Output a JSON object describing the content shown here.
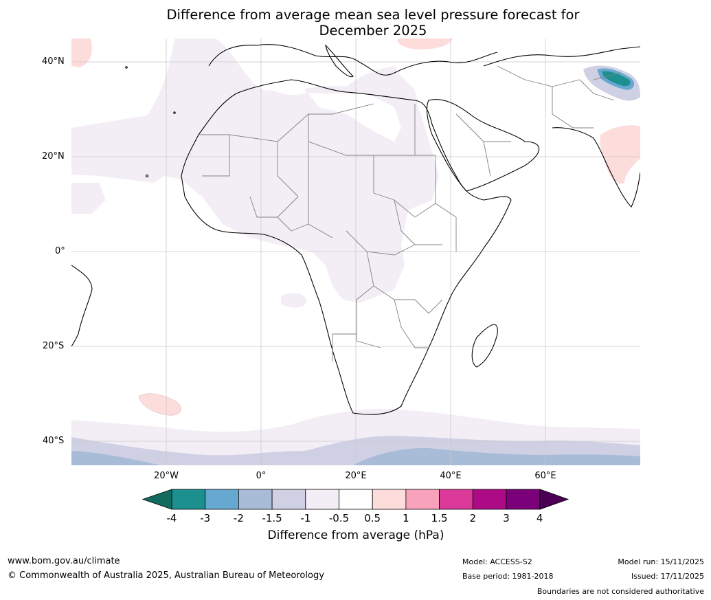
{
  "header": {
    "title_line1": "Difference from average mean sea level pressure forecast for",
    "title_line2": "December 2025"
  },
  "map": {
    "lat_labels": [
      "40°N",
      "20°N",
      "0°",
      "20°S",
      "40°S"
    ],
    "lon_labels": [
      "20°W",
      "0°",
      "20°E",
      "40°E",
      "60°E"
    ]
  },
  "colorbar": {
    "ticks": [
      "-4",
      "-3",
      "-2",
      "-1.5",
      "-1",
      "-0.5",
      "0.5",
      "1",
      "1.5",
      "2",
      "3",
      "4"
    ],
    "colors": [
      "#1c8f8f",
      "#67a8d0",
      "#a8bcd8",
      "#cfd0e4",
      "#f3eef6",
      "#ffffff",
      "#fddcdc",
      "#f8a3bb",
      "#dc3a9a",
      "#ad0a86",
      "#7a0179"
    ],
    "under_color": "#116b5e",
    "over_color": "#4b0055",
    "label": "Difference from average (hPa)"
  },
  "footer": {
    "website": "www.bom.gov.au/climate",
    "copyright": "© Commonwealth of Australia 2025, Australian Bureau of Meteorology",
    "model": "Model: ACCESS-S2",
    "base_period": "Base period: 1981-2018",
    "model_run": "Model run: 15/11/2025",
    "issued": "Issued: 17/11/2025",
    "disclaimer": "Boundaries are not considered authoritative"
  }
}
